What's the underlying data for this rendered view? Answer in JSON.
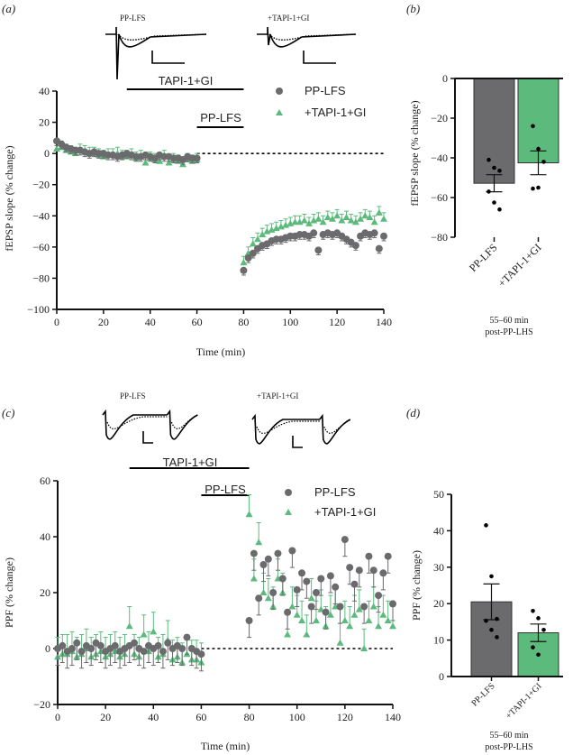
{
  "colors": {
    "gray": "#6b6b6e",
    "green": "#5dba7d",
    "axis": "#111111"
  },
  "chart_data": [
    {
      "panel": "(a)",
      "type": "scatter",
      "ylabel": "fEPSP slope (% change)",
      "xlabel": "Time (min)",
      "xlim": [
        0,
        140
      ],
      "ylim": [
        -100,
        40
      ],
      "xticks": [
        "0",
        "20",
        "40",
        "60",
        "80",
        "100",
        "120",
        "140"
      ],
      "yticks": [
        "40",
        "20",
        "0",
        "−20",
        "−40",
        "−60",
        "−80",
        "−100"
      ],
      "ytick_values": [
        40,
        20,
        0,
        -20,
        -40,
        -60,
        -80,
        -100
      ],
      "traces_labels": [
        "PP-LFS",
        "+TAPI-1+GI"
      ],
      "bars": [
        {
          "label": "TAPI-1+GI",
          "from": 30,
          "to": 80
        },
        {
          "label": "PP-LFS",
          "from": 60,
          "to": 80
        }
      ],
      "legend": [
        "PP-LFS",
        "+TAPI-1+GI"
      ],
      "legend_position": "top-right",
      "x_early": [
        0,
        2,
        4,
        6,
        8,
        10,
        12,
        14,
        16,
        18,
        20,
        22,
        24,
        26,
        28,
        30,
        32,
        34,
        36,
        38,
        40,
        42,
        44,
        46,
        48,
        50,
        52,
        54,
        56,
        58,
        60
      ],
      "x_late": [
        80,
        82,
        84,
        86,
        88,
        90,
        92,
        94,
        96,
        98,
        100,
        102,
        104,
        106,
        108,
        110,
        112,
        114,
        116,
        118,
        120,
        122,
        124,
        126,
        128,
        130,
        132,
        134,
        136,
        138,
        140
      ],
      "series": [
        {
          "name": "PP-LFS",
          "color": "gray",
          "marker": "circle",
          "sem": 3,
          "early": [
            8,
            6,
            4,
            3,
            2,
            2,
            1,
            0,
            1,
            0,
            0,
            -1,
            -1,
            -2,
            -1,
            0,
            -1,
            -2,
            -2,
            -1,
            -2,
            -3,
            -1,
            -2,
            -2,
            -3,
            -3,
            -4,
            -2,
            -3,
            -3
          ],
          "late": [
            -75,
            -67,
            -64,
            -61,
            -59,
            -58,
            -56,
            -55,
            -55,
            -54,
            -53,
            -53,
            -52,
            -52,
            -53,
            -51,
            -62,
            -52,
            -51,
            -52,
            -51,
            -53,
            -55,
            -57,
            -59,
            -53,
            -51,
            -52,
            -51,
            -61,
            -53
          ]
        },
        {
          "name": "+TAPI-1+GI",
          "color": "green",
          "marker": "triangle",
          "sem": 4,
          "early": [
            3,
            4,
            2,
            1,
            0,
            2,
            1,
            0,
            0,
            -1,
            -2,
            -1,
            -1,
            0,
            -2,
            -2,
            -1,
            -3,
            -2,
            -6,
            -3,
            -4,
            -5,
            -2,
            -6,
            -4,
            -5,
            -7,
            -4,
            -5,
            -4
          ],
          "late": [
            -70,
            -64,
            -58,
            -55,
            -52,
            -50,
            -49,
            -48,
            -47,
            -46,
            -45,
            -44,
            -44,
            -43,
            -45,
            -43,
            -42,
            -44,
            -41,
            -42,
            -40,
            -43,
            -41,
            -43,
            -44,
            -42,
            -40,
            -41,
            -44,
            -38,
            -42
          ]
        }
      ]
    },
    {
      "panel": "(b)",
      "type": "bar",
      "ylabel": "fEPSP slope (% change)",
      "ylim": [
        -80,
        0
      ],
      "yticks": [
        "0",
        "−20",
        "−40",
        "−60",
        "−80"
      ],
      "ytick_values": [
        0,
        -20,
        -40,
        -60,
        -80
      ],
      "categories": [
        "PP-LFS",
        "+TAPI-1+GI"
      ],
      "values": [
        -52.8,
        -42.5
      ],
      "sem": [
        4.3,
        6.0
      ],
      "points": [
        [
          -41,
          -45,
          -46.5,
          -57,
          -62.5,
          -66
        ],
        [
          -24,
          -35.5,
          -42,
          -55.5,
          -55
        ]
      ],
      "xlabel": "55–60 min",
      "xlabel2": "post-PP-LHS"
    },
    {
      "panel": "(c)",
      "type": "scatter",
      "ylabel": "PPF (% change)",
      "xlabel": "Time (min)",
      "xlim": [
        0,
        140
      ],
      "ylim": [
        -20,
        60
      ],
      "xticks": [
        "0",
        "20",
        "40",
        "60",
        "80",
        "100",
        "120",
        "140"
      ],
      "yticks": [
        "60",
        "40",
        "20",
        "0",
        "−20"
      ],
      "ytick_values": [
        60,
        40,
        20,
        0,
        -20
      ],
      "traces_labels": [
        "PP-LFS",
        "+TAPI-1+GI"
      ],
      "bars": [
        {
          "label": "TAPI-1+GI",
          "from": 30,
          "to": 80
        },
        {
          "label": "PP-LFS",
          "from": 60,
          "to": 80
        }
      ],
      "legend": [
        "PP-LFS",
        "+TAPI-1+GI"
      ],
      "legend_position": "top-right",
      "x_early": [
        0,
        2,
        4,
        6,
        8,
        10,
        12,
        14,
        16,
        18,
        20,
        22,
        24,
        26,
        28,
        30,
        32,
        34,
        36,
        38,
        40,
        42,
        44,
        46,
        48,
        50,
        52,
        54,
        56,
        58,
        60
      ],
      "x_late": [
        80,
        82,
        84,
        86,
        88,
        90,
        92,
        94,
        96,
        98,
        100,
        102,
        104,
        106,
        108,
        110,
        112,
        114,
        116,
        118,
        120,
        122,
        124,
        126,
        128,
        130,
        132,
        134,
        136,
        138,
        140
      ],
      "series": [
        {
          "name": "PP-LFS",
          "color": "gray",
          "marker": "circle",
          "sem": 6,
          "early": [
            0,
            1,
            -1,
            0,
            2,
            -1,
            1,
            0,
            2,
            1,
            -1,
            0,
            1,
            -1,
            0,
            1,
            2,
            0,
            -1,
            1,
            0,
            1,
            -1,
            2,
            0,
            1,
            0,
            4,
            0,
            -1,
            -2
          ],
          "late": [
            10,
            34,
            18,
            30,
            32,
            20,
            34,
            25,
            13,
            35,
            21,
            27,
            24,
            15,
            20,
            25,
            13,
            26,
            22,
            15,
            39,
            29,
            23,
            28,
            15,
            33,
            28,
            19,
            27,
            33,
            16
          ]
        },
        {
          "name": "+TAPI-1+GI",
          "color": "green",
          "marker": "triangle",
          "sem": 7,
          "early": [
            -3,
            -2,
            -2,
            -1,
            -3,
            -2,
            0,
            -3,
            -2,
            -1,
            -3,
            -2,
            -1,
            -3,
            -2,
            8,
            -2,
            -3,
            5,
            -1,
            6,
            -3,
            -2,
            3,
            -4,
            -3,
            -5,
            -2,
            -4,
            -4,
            -5
          ],
          "late": [
            48,
            25,
            38,
            20,
            18,
            15,
            25,
            20,
            5,
            15,
            12,
            10,
            5,
            18,
            10,
            14,
            8,
            12,
            15,
            2,
            10,
            8,
            12,
            14,
            0,
            10,
            15,
            8,
            12,
            10,
            8
          ]
        }
      ]
    },
    {
      "panel": "(d)",
      "type": "bar",
      "ylabel": "PPF (% change)",
      "ylim": [
        0,
        50
      ],
      "yticks": [
        "50",
        "40",
        "30",
        "20",
        "10",
        "0"
      ],
      "ytick_values": [
        50,
        40,
        30,
        20,
        10,
        0
      ],
      "categories": [
        "PP-LFS",
        "+TAPI-1+GI"
      ],
      "values": [
        20.5,
        12.0
      ],
      "sem": [
        4.9,
        2.4
      ],
      "points": [
        [
          41.5,
          27.5,
          15.8,
          15.3,
          12.8,
          10.8
        ],
        [
          18,
          16,
          12.8,
          8,
          6
        ]
      ],
      "xlabel": "55–60 min",
      "xlabel2": "post-PP-LHS"
    }
  ]
}
